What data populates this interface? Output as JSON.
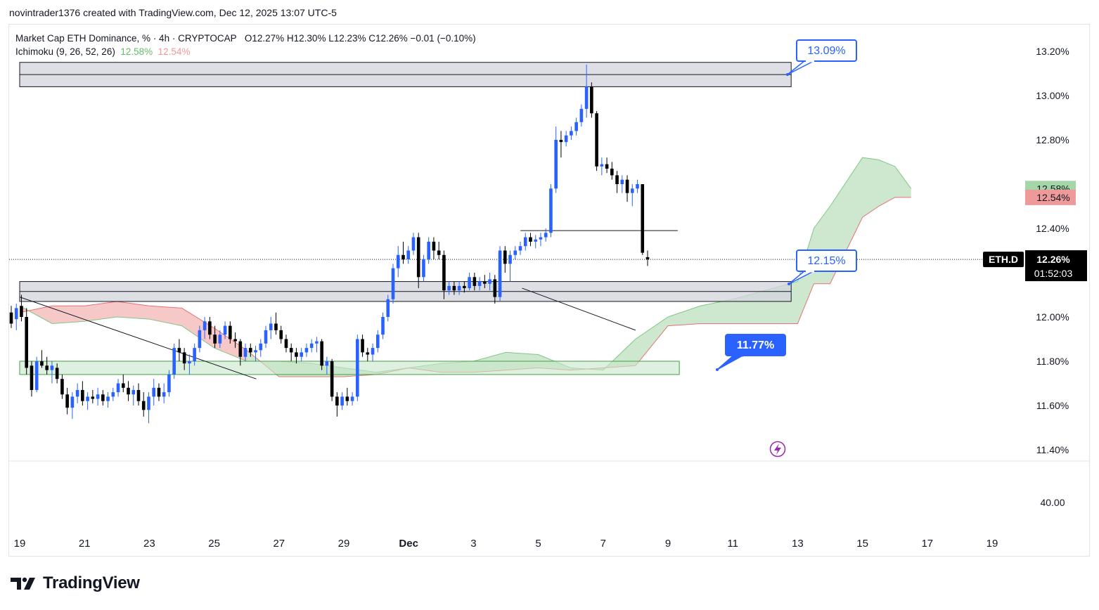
{
  "header": {
    "credit": "novintrader1376 created with TradingView.com, Dec 12, 2025 13:07 UTC-5"
  },
  "legend": {
    "title": "Market Cap ETH Dominance, % · 4h · CRYPTOCAP",
    "ohlc": "O12.27%  H12.30%  L12.23%  C12.26%  −0.01 (−0.10%)",
    "indicator": "Ichimoku (9, 26, 52, 26)",
    "ichimoku_value_1": "12.58%",
    "ichimoku_value_2": "12.54%"
  },
  "colors": {
    "bull": "#2962ff",
    "bear": "#000000",
    "cloud_bull": "#a5d6a7",
    "cloud_bear": "#ef9a9a",
    "zone_gray": "#d1d4dc",
    "zone_green": "#c8e6c9",
    "callout": "#2962ff"
  },
  "chart_data": {
    "type": "candlestick",
    "symbol": "ETH.D",
    "timeframe": "4h",
    "ylim": [
      11.38,
      13.28
    ],
    "y_ticks": [
      "13.20%",
      "13.00%",
      "12.80%",
      "12.40%",
      "12.00%",
      "11.80%",
      "11.60%",
      "11.40%"
    ],
    "y_tick_values": [
      13.2,
      13.0,
      12.8,
      12.4,
      12.0,
      11.8,
      11.6,
      11.4
    ],
    "lower_pane_tick": "40.00",
    "x_ticks": [
      "19",
      "21",
      "23",
      "25",
      "27",
      "29",
      "Dec",
      "3",
      "5",
      "7",
      "9",
      "11",
      "13",
      "15",
      "17",
      "19"
    ],
    "x_tick_days": [
      0,
      2,
      4,
      6,
      8,
      10,
      12,
      14,
      16,
      18,
      20,
      22,
      24,
      26,
      28,
      30
    ],
    "last_price": {
      "symbol": "ETH.D",
      "value": "12.26%",
      "countdown": "01:52:03",
      "price": 12.26
    },
    "ichimoku_labels": [
      {
        "text": "12.58%",
        "price": 12.58,
        "color": "#a5d6a7"
      },
      {
        "text": "12.54%",
        "price": 12.54,
        "color": "#ef9a9a"
      }
    ],
    "callouts": [
      {
        "text": "13.09%",
        "price": 13.09,
        "filled": false
      },
      {
        "text": "12.15%",
        "price": 12.15,
        "filled": false
      },
      {
        "text": "11.77%",
        "price": 11.77,
        "filled": true
      }
    ],
    "zones": [
      {
        "kind": "resistance",
        "from_day": 0,
        "to_day": 23.8,
        "low": 13.04,
        "high": 13.15
      },
      {
        "kind": "support",
        "from_day": 0,
        "to_day": 23.8,
        "low": 12.07,
        "high": 12.16
      },
      {
        "kind": "demand",
        "from_day": 0,
        "to_day": 20.35,
        "low": 11.74,
        "high": 11.8
      }
    ],
    "trendlines": [
      {
        "d1": 0,
        "p1": 12.09,
        "d2": 7.3,
        "p2": 11.72
      },
      {
        "d1": 15.45,
        "p1": 12.39,
        "d2": 20.3,
        "p2": 12.39
      },
      {
        "d1": 15.5,
        "p1": 12.13,
        "d2": 19.0,
        "p2": 11.94
      }
    ],
    "cloud": {
      "days": [
        0,
        1,
        2,
        3,
        4,
        5,
        6,
        7,
        8,
        9,
        10,
        11,
        12,
        13,
        14,
        15,
        16,
        17,
        18,
        19,
        20,
        21,
        22,
        23,
        24,
        24.5,
        25,
        26,
        26.5,
        27,
        27.5
      ],
      "span_a": [
        12.05,
        11.97,
        11.98,
        12.0,
        11.99,
        11.96,
        11.86,
        11.8,
        11.8,
        11.79,
        11.77,
        11.75,
        11.77,
        11.79,
        11.8,
        11.84,
        11.83,
        11.77,
        11.76,
        11.9,
        12.0,
        12.05,
        12.08,
        12.12,
        12.16,
        12.4,
        12.5,
        12.72,
        12.71,
        12.68,
        12.58
      ],
      "span_b": [
        12.02,
        12.05,
        12.05,
        12.07,
        12.05,
        12.04,
        11.95,
        11.85,
        11.73,
        11.73,
        11.73,
        11.74,
        11.77,
        11.75,
        11.75,
        11.76,
        11.77,
        11.76,
        11.77,
        11.78,
        11.96,
        11.97,
        11.97,
        11.97,
        11.97,
        12.15,
        12.15,
        12.45,
        12.5,
        12.54,
        12.54
      ]
    },
    "candles": [
      [
        12.02,
        12.05,
        11.95,
        11.97
      ],
      [
        11.99,
        12.06,
        11.94,
        12.04
      ],
      [
        12.05,
        12.1,
        11.98,
        12.0
      ],
      [
        12.0,
        12.04,
        11.74,
        11.77
      ],
      [
        11.78,
        11.8,
        11.64,
        11.67
      ],
      [
        11.67,
        11.82,
        11.66,
        11.8
      ],
      [
        11.8,
        11.85,
        11.77,
        11.78
      ],
      [
        11.78,
        11.82,
        11.74,
        11.76
      ],
      [
        11.76,
        11.8,
        11.7,
        11.78
      ],
      [
        11.77,
        11.79,
        11.7,
        11.72
      ],
      [
        11.72,
        11.74,
        11.63,
        11.65
      ],
      [
        11.65,
        11.68,
        11.56,
        11.59
      ],
      [
        11.59,
        11.66,
        11.54,
        11.64
      ],
      [
        11.64,
        11.7,
        11.61,
        11.67
      ],
      [
        11.67,
        11.71,
        11.6,
        11.62
      ],
      [
        11.62,
        11.66,
        11.58,
        11.64
      ],
      [
        11.64,
        11.67,
        11.61,
        11.63
      ],
      [
        11.63,
        11.68,
        11.6,
        11.65
      ],
      [
        11.65,
        11.67,
        11.6,
        11.62
      ],
      [
        11.62,
        11.66,
        11.59,
        11.64
      ],
      [
        11.64,
        11.68,
        11.62,
        11.66
      ],
      [
        11.66,
        11.72,
        11.64,
        11.7
      ],
      [
        11.7,
        11.74,
        11.66,
        11.68
      ],
      [
        11.68,
        11.71,
        11.62,
        11.65
      ],
      [
        11.65,
        11.69,
        11.6,
        11.67
      ],
      [
        11.67,
        11.7,
        11.6,
        11.62
      ],
      [
        11.62,
        11.66,
        11.55,
        11.58
      ],
      [
        11.58,
        11.66,
        11.52,
        11.64
      ],
      [
        11.64,
        11.72,
        11.6,
        11.68
      ],
      [
        11.68,
        11.7,
        11.62,
        11.64
      ],
      [
        11.64,
        11.7,
        11.61,
        11.66
      ],
      [
        11.66,
        11.76,
        11.64,
        11.74
      ],
      [
        11.74,
        11.88,
        11.72,
        11.86
      ],
      [
        11.86,
        11.9,
        11.8,
        11.84
      ],
      [
        11.84,
        11.86,
        11.76,
        11.79
      ],
      [
        11.79,
        11.83,
        11.74,
        11.8
      ],
      [
        11.8,
        11.88,
        11.78,
        11.86
      ],
      [
        11.86,
        11.96,
        11.84,
        11.94
      ],
      [
        11.94,
        12.0,
        11.9,
        11.98
      ],
      [
        11.98,
        12.0,
        11.9,
        11.92
      ],
      [
        11.92,
        11.96,
        11.86,
        11.88
      ],
      [
        11.88,
        11.94,
        11.86,
        11.92
      ],
      [
        11.92,
        11.98,
        11.9,
        11.96
      ],
      [
        11.96,
        11.98,
        11.88,
        11.9
      ],
      [
        11.9,
        11.93,
        11.86,
        11.89
      ],
      [
        11.89,
        11.9,
        11.78,
        11.82
      ],
      [
        11.82,
        11.88,
        11.8,
        11.86
      ],
      [
        11.86,
        11.88,
        11.82,
        11.84
      ],
      [
        11.84,
        11.87,
        11.8,
        11.85
      ],
      [
        11.85,
        11.9,
        11.82,
        11.88
      ],
      [
        11.88,
        11.96,
        11.86,
        11.94
      ],
      [
        11.94,
        12.0,
        11.9,
        11.97
      ],
      [
        11.97,
        12.02,
        11.92,
        11.94
      ],
      [
        11.94,
        11.96,
        11.88,
        11.9
      ],
      [
        11.9,
        11.92,
        11.84,
        11.86
      ],
      [
        11.86,
        11.88,
        11.8,
        11.84
      ],
      [
        11.84,
        11.86,
        11.79,
        11.82
      ],
      [
        11.82,
        11.86,
        11.8,
        11.84
      ],
      [
        11.84,
        11.88,
        11.82,
        11.86
      ],
      [
        11.86,
        11.9,
        11.84,
        11.88
      ],
      [
        11.88,
        11.91,
        11.84,
        11.89
      ],
      [
        11.89,
        11.9,
        11.76,
        11.78
      ],
      [
        11.78,
        11.82,
        11.74,
        11.8
      ],
      [
        11.8,
        11.81,
        11.62,
        11.64
      ],
      [
        11.64,
        11.66,
        11.55,
        11.6
      ],
      [
        11.6,
        11.66,
        11.58,
        11.64
      ],
      [
        11.64,
        11.68,
        11.6,
        11.62
      ],
      [
        11.62,
        11.66,
        11.6,
        11.64
      ],
      [
        11.64,
        11.92,
        11.62,
        11.9
      ],
      [
        11.9,
        11.92,
        11.82,
        11.84
      ],
      [
        11.84,
        11.86,
        11.8,
        11.83
      ],
      [
        11.83,
        11.88,
        11.8,
        11.86
      ],
      [
        11.86,
        11.94,
        11.84,
        11.92
      ],
      [
        11.92,
        12.02,
        11.9,
        12.0
      ],
      [
        12.0,
        12.1,
        11.98,
        12.08
      ],
      [
        12.08,
        12.24,
        12.06,
        12.22
      ],
      [
        12.22,
        12.32,
        12.18,
        12.28
      ],
      [
        12.28,
        12.34,
        12.24,
        12.26
      ],
      [
        12.26,
        12.32,
        12.24,
        12.3
      ],
      [
        12.3,
        12.38,
        12.28,
        12.36
      ],
      [
        12.36,
        12.38,
        12.13,
        12.18
      ],
      [
        12.18,
        12.28,
        12.16,
        12.26
      ],
      [
        12.26,
        12.36,
        12.24,
        12.34
      ],
      [
        12.34,
        12.36,
        12.26,
        12.3
      ],
      [
        12.3,
        12.34,
        12.26,
        12.28
      ],
      [
        12.28,
        12.3,
        12.08,
        12.12
      ],
      [
        12.12,
        12.16,
        12.1,
        12.14
      ],
      [
        12.14,
        12.16,
        12.1,
        12.12
      ],
      [
        12.12,
        12.16,
        12.1,
        12.14
      ],
      [
        12.14,
        12.16,
        12.11,
        12.13
      ],
      [
        12.13,
        12.2,
        12.12,
        12.18
      ],
      [
        12.18,
        12.2,
        12.12,
        12.14
      ],
      [
        12.14,
        12.18,
        12.12,
        12.16
      ],
      [
        12.16,
        12.19,
        12.13,
        12.15
      ],
      [
        12.15,
        12.2,
        12.12,
        12.17
      ],
      [
        12.17,
        12.19,
        12.06,
        12.09
      ],
      [
        12.09,
        12.32,
        12.07,
        12.3
      ],
      [
        12.3,
        12.32,
        12.2,
        12.24
      ],
      [
        12.24,
        12.3,
        12.16,
        12.28
      ],
      [
        12.28,
        12.32,
        12.26,
        12.3
      ],
      [
        12.3,
        12.34,
        12.28,
        12.32
      ],
      [
        12.32,
        12.38,
        12.3,
        12.36
      ],
      [
        12.36,
        12.38,
        12.32,
        12.34
      ],
      [
        12.34,
        12.37,
        12.31,
        12.35
      ],
      [
        12.35,
        12.38,
        12.32,
        12.36
      ],
      [
        12.36,
        12.4,
        12.34,
        12.38
      ],
      [
        12.38,
        12.6,
        12.36,
        12.58
      ],
      [
        12.58,
        12.86,
        12.56,
        12.8
      ],
      [
        12.8,
        12.84,
        12.72,
        12.79
      ],
      [
        12.79,
        12.84,
        12.77,
        12.82
      ],
      [
        12.82,
        12.86,
        12.8,
        12.84
      ],
      [
        12.84,
        12.9,
        12.82,
        12.88
      ],
      [
        12.88,
        12.96,
        12.86,
        12.94
      ],
      [
        12.94,
        13.14,
        12.9,
        13.04
      ],
      [
        13.04,
        13.06,
        12.9,
        12.92
      ],
      [
        12.92,
        12.93,
        12.66,
        12.68
      ],
      [
        12.68,
        12.72,
        12.64,
        12.69
      ],
      [
        12.69,
        12.72,
        12.65,
        12.67
      ],
      [
        12.67,
        12.7,
        12.62,
        12.64
      ],
      [
        12.64,
        12.66,
        12.56,
        12.6
      ],
      [
        12.6,
        12.64,
        12.56,
        12.62
      ],
      [
        12.62,
        12.64,
        12.52,
        12.56
      ],
      [
        12.56,
        12.6,
        12.5,
        12.58
      ],
      [
        12.58,
        12.62,
        12.56,
        12.6
      ],
      [
        12.6,
        12.6,
        12.28,
        12.29
      ],
      [
        12.27,
        12.3,
        12.23,
        12.26
      ]
    ]
  },
  "footer": {
    "brand": "TradingView"
  }
}
